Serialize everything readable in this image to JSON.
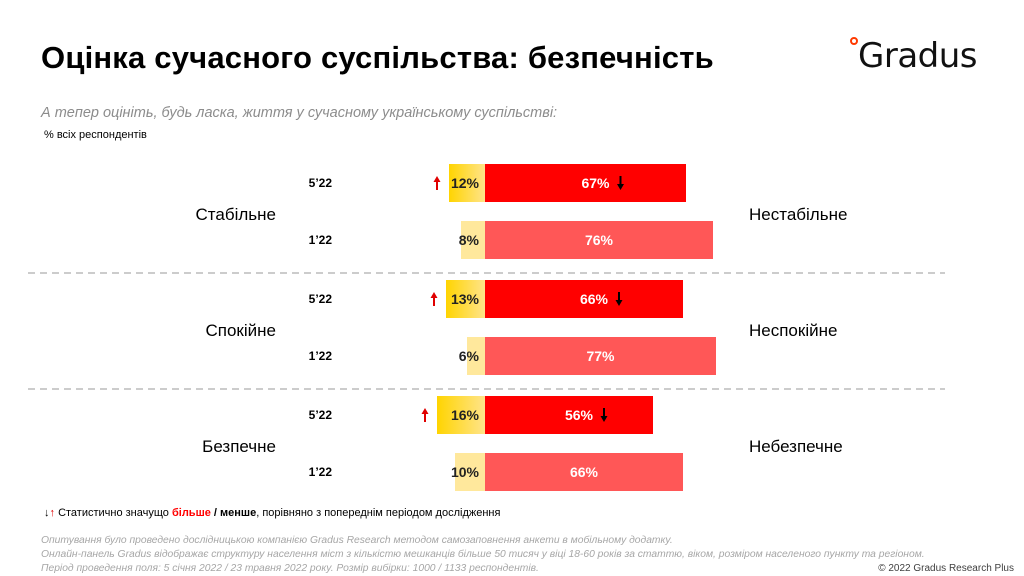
{
  "header": {
    "title": "Оцінка сучасного суспільства: безпечність",
    "logo_text": "Gradus",
    "subtitle": "А тепер оцініть, будь ласка, життя у сучасному українському суспільстві:",
    "base_note": "% всіх респондентів"
  },
  "chart_data": {
    "type": "bar",
    "orientation": "horizontal-diverging",
    "groups": [
      {
        "left_label": "Стабільне",
        "right_label": "Нестабільне",
        "rows": [
          {
            "period": "5’22",
            "left_value": 12,
            "right_value": 67,
            "left_arrow": "up",
            "right_arrow": "down",
            "style": "current"
          },
          {
            "period": "1’22",
            "left_value": 8,
            "right_value": 76,
            "left_arrow": null,
            "right_arrow": null,
            "style": "previous"
          }
        ]
      },
      {
        "left_label": "Спокійне",
        "right_label": "Неспокійне",
        "rows": [
          {
            "period": "5’22",
            "left_value": 13,
            "right_value": 66,
            "left_arrow": "up",
            "right_arrow": "down",
            "style": "current"
          },
          {
            "period": "1’22",
            "left_value": 6,
            "right_value": 77,
            "left_arrow": null,
            "right_arrow": null,
            "style": "previous"
          }
        ]
      },
      {
        "left_label": "Безпечне",
        "right_label": "Небезпечне",
        "rows": [
          {
            "period": "5’22",
            "left_value": 16,
            "right_value": 56,
            "left_arrow": "up",
            "right_arrow": "down",
            "style": "current"
          },
          {
            "period": "1’22",
            "left_value": 10,
            "right_value": 66,
            "left_arrow": null,
            "right_arrow": null,
            "style": "previous"
          }
        ]
      }
    ],
    "colors": {
      "current_right": "#ff0000",
      "previous_right": "#ff5757",
      "current_left_start": "#ffd400",
      "current_left_end": "#ffe48a",
      "previous_left": "#ffe89c",
      "arrow_up": "#e00000",
      "arrow_down": "#000000",
      "separator": "#cccccc"
    }
  },
  "legend": {
    "prefix": "Статистично значущо ",
    "more": "більше",
    "sep": " / ",
    "less": "менше",
    "suffix": ", порівняно з попереднім періодом дослідження"
  },
  "footnote": {
    "line1": "Опитування було проведено дослідницькою компанією Gradus Research методом самозаповнення анкети в мобільному додатку.",
    "line2": "Онлайн-панель Gradus відображає структуру населення міст з кількістю мешканців більше 50 тисяч у віці 18-60 років за статтю, віком, розміром населеного пункту та регіоном. Період проведення поля: 5 січня 2022 / 23 травня 2022 року. Розмір вибірки: 1000 / 1133 респондентів."
  },
  "copyright": "© 2022 Gradus Research Plus"
}
